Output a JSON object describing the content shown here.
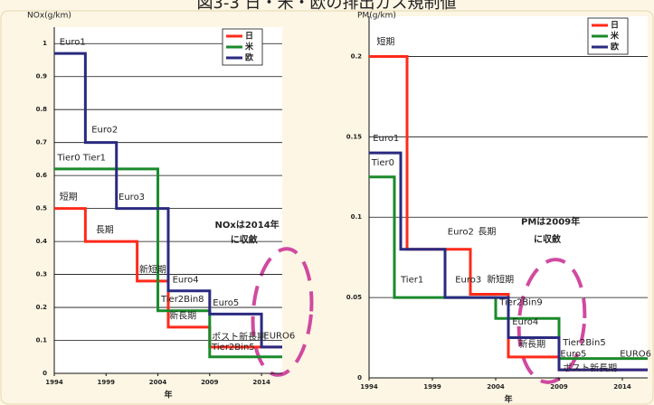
{
  "title": "図3-3 日・米・欧の排出ガス規制値",
  "chart_data": [
    {
      "type": "line",
      "step": "post",
      "ylabel": "NOx(g/km)",
      "xlabel": "年",
      "xlim": [
        1994,
        2016
      ],
      "xticks": [
        1994,
        1999,
        2004,
        2009,
        2014
      ],
      "ylim": [
        0,
        1.05
      ],
      "yticks": [
        0,
        0.1,
        0.2,
        0.3,
        0.4,
        0.5,
        0.6,
        0.7,
        0.8,
        0.9,
        1
      ],
      "grid": true,
      "legend": "upper right",
      "series": [
        {
          "name": "日",
          "color": "#ff2a1a",
          "x": [
            1994,
            1997,
            2002,
            2005,
            2009,
            2016
          ],
          "values": [
            0.5,
            0.4,
            0.28,
            0.14,
            0.08,
            0.08
          ]
        },
        {
          "name": "米",
          "color": "#1a8a2a",
          "x": [
            1994,
            2004,
            2009,
            2016
          ],
          "values": [
            0.62,
            0.19,
            0.05,
            0.05
          ]
        },
        {
          "name": "欧",
          "color": "#2a2a80",
          "x": [
            1994,
            1997,
            2000,
            2005,
            2009,
            2014,
            2016
          ],
          "values": [
            0.97,
            0.7,
            0.5,
            0.25,
            0.18,
            0.08,
            0.08
          ]
        }
      ],
      "annotations": [
        "Euro1",
        "Euro2",
        "Tier0 Tier1",
        "Euro3",
        "短期",
        "長期",
        "新短期",
        "Euro4",
        "Tier2Bin8",
        "新長期",
        "Euro5",
        "ポスト新長期",
        "EURO6",
        "Tier2Bin5",
        "NOxは2014年",
        "に収斂"
      ]
    },
    {
      "type": "line",
      "step": "post",
      "ylabel": "PM(g/km)",
      "xlabel": "年",
      "xlim": [
        1994,
        2016
      ],
      "xticks": [
        1994,
        1999,
        2004,
        2009,
        2014
      ],
      "ylim": [
        0,
        0.225
      ],
      "yticks": [
        0,
        0.05,
        0.1,
        0.15,
        0.2
      ],
      "grid": true,
      "legend": "upper right",
      "series": [
        {
          "name": "日",
          "color": "#ff2a1a",
          "x": [
            1994,
            1997,
            2002,
            2005,
            2009,
            2016
          ],
          "values": [
            0.2,
            0.08,
            0.052,
            0.013,
            0.005,
            0.005
          ]
        },
        {
          "name": "米",
          "color": "#1a8a2a",
          "x": [
            1994,
            1996,
            2004,
            2009,
            2016
          ],
          "values": [
            0.125,
            0.05,
            0.037,
            0.012,
            0.012
          ]
        },
        {
          "name": "欧",
          "color": "#2a2a80",
          "x": [
            1994,
            1996.5,
            2000,
            2005,
            2009,
            2016
          ],
          "values": [
            0.14,
            0.08,
            0.05,
            0.025,
            0.005,
            0.005
          ]
        }
      ],
      "annotations": [
        "短期",
        "Euro1",
        "Tier0",
        "Tier1",
        "Euro2",
        "長期",
        "Euro3",
        "新短期",
        "Tier2Bin9",
        "Euro4",
        "新長期",
        "Tier2Bin5",
        "Euro5",
        "ポスト新長期",
        "EURO6",
        "PMは2009年",
        "に収斂"
      ]
    }
  ]
}
